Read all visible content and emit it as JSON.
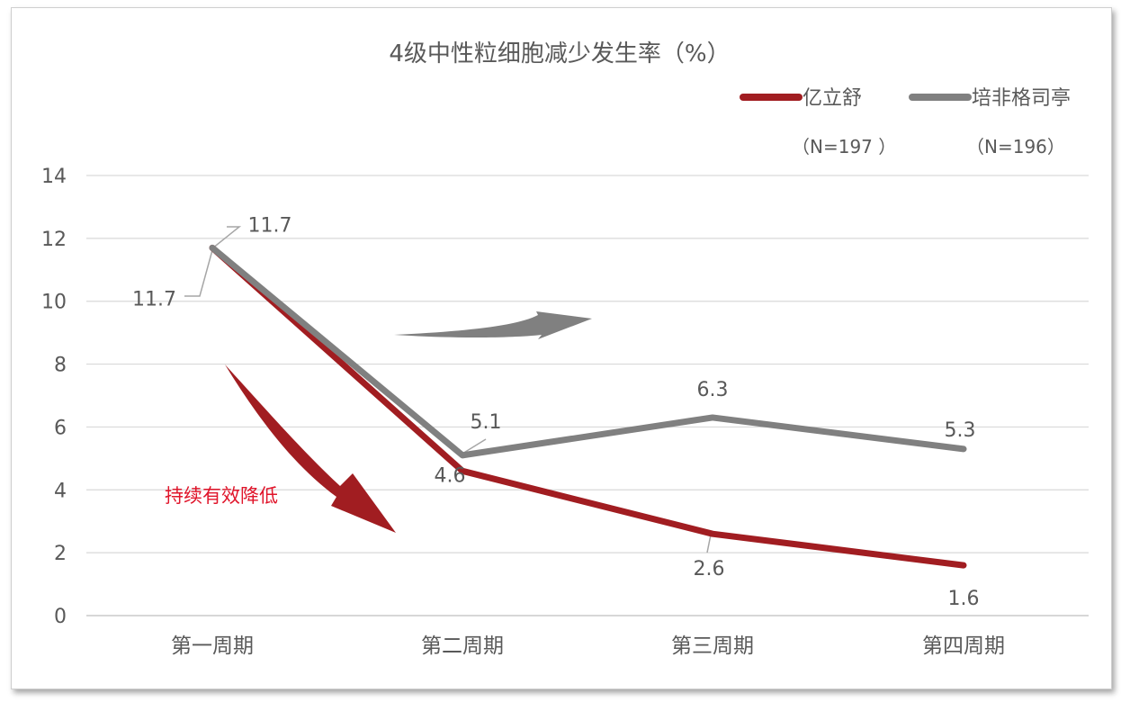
{
  "chart_data": {
    "type": "line",
    "title": "4级中性粒细胞减少发生率（%）",
    "xlabel": "",
    "ylabel": "",
    "categories": [
      "第一周期",
      "第二周期",
      "第三周期",
      "第四周期"
    ],
    "ylim": [
      0,
      14
    ],
    "yticks": [
      "0",
      "2",
      "4",
      "6",
      "8",
      "10",
      "12",
      "14"
    ],
    "grid": true,
    "legend_position": "top-right",
    "series": [
      {
        "name": "亿立舒",
        "sample": "（N=197 ）",
        "color": "#a11d21",
        "values": [
          11.7,
          4.6,
          2.6,
          1.6
        ],
        "labels": [
          "11.7",
          "4.6",
          "2.6",
          "1.6"
        ]
      },
      {
        "name": "培非格司亭",
        "sample": "（N=196）",
        "color": "#808080",
        "values": [
          11.7,
          5.1,
          6.3,
          5.3
        ],
        "labels": [
          "11.7",
          "5.1",
          "6.3",
          "5.3"
        ]
      }
    ],
    "annotations": [
      {
        "text": "持续有效降低",
        "color": "#e0142a"
      }
    ]
  }
}
